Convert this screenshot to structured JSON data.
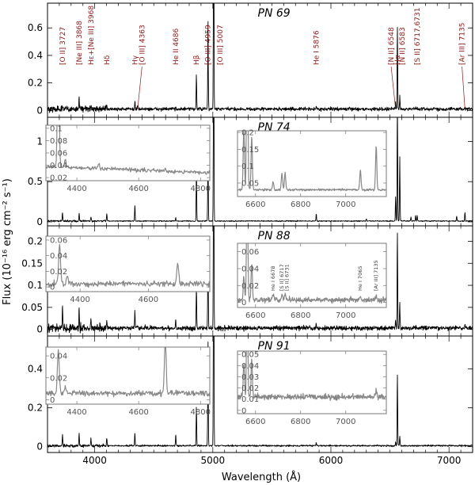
{
  "chart_data": {
    "type": "line",
    "xlabel": "Wavelength (Å)",
    "ylabel": "Flux (10⁻¹⁶ erg cm⁻² s⁻¹)",
    "xlim": [
      3600,
      7200
    ],
    "xticks": [
      4000,
      5000,
      6000,
      7000
    ],
    "xtick_labels": [
      "4000",
      "5000",
      "6000",
      "7000"
    ],
    "panels": [
      {
        "name": "PN 69",
        "ylim": [
          -0.05,
          0.78
        ],
        "yticks": [
          0,
          0.2,
          0.4,
          0.6
        ],
        "ytick_labels": [
          "0",
          "0.2",
          "0.4",
          "0.6"
        ],
        "continuum": 0.01,
        "noise": 0.012,
        "lines": [
          {
            "w": 3727,
            "h": 0.04
          },
          {
            "w": 3868,
            "h": 0.09
          },
          {
            "w": 3968,
            "h": 0.04
          },
          {
            "w": 4102,
            "h": 0.03
          },
          {
            "w": 4340,
            "h": 0.06
          },
          {
            "w": 4363,
            "h": 0.03
          },
          {
            "w": 4686,
            "h": 0.02
          },
          {
            "w": 4861,
            "h": 0.25
          },
          {
            "w": 4959,
            "h": 0.66
          },
          {
            "w": 5007,
            "h": 1.8
          },
          {
            "w": 5876,
            "h": 0.02
          },
          {
            "w": 6548,
            "h": 0.05
          },
          {
            "w": 6563,
            "h": 0.6
          },
          {
            "w": 6583,
            "h": 0.1
          },
          {
            "w": 6717,
            "h": 0.01
          },
          {
            "w": 6731,
            "h": 0.01
          },
          {
            "w": 7135,
            "h": 0.02
          }
        ],
        "annotations": [
          {
            "text": "[O II] 3727",
            "w": 3727
          },
          {
            "text": "[Ne III] 3868",
            "w": 3868
          },
          {
            "text": "Hε+[Ne III] 3968",
            "w": 3968
          },
          {
            "text": "Hδ",
            "w": 4102
          },
          {
            "text": "Hγ",
            "w": 4340
          },
          {
            "text": "[O III] 4363",
            "w": 4400
          },
          {
            "text": "He II 4686",
            "w": 4686
          },
          {
            "text": "Hβ",
            "w": 4861
          },
          {
            "text": "[O III] 4959",
            "w": 4959
          },
          {
            "text": "[O III] 5007",
            "w": 5060
          },
          {
            "text": "He I 5876",
            "w": 5876
          },
          {
            "text": "[N II] 6548",
            "w": 6510
          },
          {
            "text": "Hα",
            "w": 6563
          },
          {
            "text": "[N II] 6583",
            "w": 6605
          },
          {
            "text": "[S II] 6717,6731",
            "w": 6730
          },
          {
            "text": "[Ar III] 7135",
            "w": 7110
          }
        ]
      },
      {
        "name": "PN 74",
        "ylim": [
          -0.05,
          1.3
        ],
        "yticks": [
          0,
          0.5,
          1
        ],
        "ytick_labels": [
          "0",
          "0.5",
          "1"
        ],
        "continuum": 0.01,
        "noise": 0.006,
        "lines": [
          {
            "w": 3727,
            "h": 0.11
          },
          {
            "w": 3868,
            "h": 0.1
          },
          {
            "w": 3968,
            "h": 0.05
          },
          {
            "w": 4102,
            "h": 0.09
          },
          {
            "w": 4340,
            "h": 0.2
          },
          {
            "w": 4686,
            "h": 0.05
          },
          {
            "w": 4861,
            "h": 0.65
          },
          {
            "w": 4959,
            "h": 1.05
          },
          {
            "w": 5007,
            "h": 3.0
          },
          {
            "w": 5876,
            "h": 0.09
          },
          {
            "w": 6300,
            "h": 0.03
          },
          {
            "w": 6548,
            "h": 0.3
          },
          {
            "w": 6563,
            "h": 1.5
          },
          {
            "w": 6583,
            "h": 0.8
          },
          {
            "w": 6678,
            "h": 0.05
          },
          {
            "w": 6717,
            "h": 0.07
          },
          {
            "w": 6731,
            "h": 0.07
          },
          {
            "w": 7065,
            "h": 0.06
          },
          {
            "w": 7135,
            "h": 0.11
          }
        ],
        "insets": [
          {
            "xlim": [
              4300,
              4830
            ],
            "ylim": [
              0.015,
              0.105
            ],
            "xticks": [
              4400,
              4600,
              4800
            ],
            "xtick_labels": [
              "4400",
              "4600",
              "4800"
            ],
            "yticks": [
              0.02,
              0.04,
              0.06,
              0.08,
              0.1
            ],
            "ytick_labels": [
              "0.02",
              "0.04",
              "0.06",
              "0.08",
              "0.1"
            ],
            "continuum": 0.038,
            "noise": 0.003,
            "slope": -0.01,
            "lines": [
              {
                "w": 4340,
                "h": 0.2
              },
              {
                "w": 4363,
                "h": 0.012
              },
              {
                "w": 4471,
                "h": 0.008
              },
              {
                "w": 4686,
                "h": 0.003
              }
            ],
            "annotations": []
          },
          {
            "xlim": [
              6520,
              7180
            ],
            "ylim": [
              0.01,
              0.205
            ],
            "xticks": [
              6600,
              6800,
              7000
            ],
            "xtick_labels": [
              "6600",
              "6800",
              "7000"
            ],
            "yticks": [
              0.05,
              0.1,
              0.15,
              0.2
            ],
            "ytick_labels": [
              "0.05",
              "0.1",
              "0.15",
              "0.2"
            ],
            "continuum": 0.03,
            "noise": 0.003,
            "slope": 0,
            "lines": [
              {
                "w": 6548,
                "h": 0.18
              },
              {
                "w": 6563,
                "h": 0.6
              },
              {
                "w": 6583,
                "h": 0.16
              },
              {
                "w": 6678,
                "h": 0.025
              },
              {
                "w": 6717,
                "h": 0.05
              },
              {
                "w": 6731,
                "h": 0.05
              },
              {
                "w": 7065,
                "h": 0.06
              },
              {
                "w": 7135,
                "h": 0.13
              }
            ],
            "annotations": []
          }
        ]
      },
      {
        "name": "PN 88",
        "ylim": [
          -0.015,
          0.235
        ],
        "yticks": [
          0,
          0.05,
          0.1,
          0.15,
          0.2
        ],
        "ytick_labels": [
          "0",
          "0.05",
          "0.1",
          "0.15",
          "0.2"
        ],
        "continuum": 0.003,
        "noise": 0.005,
        "lines": [
          {
            "w": 3727,
            "h": 0.05
          },
          {
            "w": 3868,
            "h": 0.04
          },
          {
            "w": 3968,
            "h": 0.02
          },
          {
            "w": 4102,
            "h": 0.015
          },
          {
            "w": 4340,
            "h": 0.04
          },
          {
            "w": 4686,
            "h": 0.02
          },
          {
            "w": 4861,
            "h": 0.09
          },
          {
            "w": 4959,
            "h": 0.22
          },
          {
            "w": 5007,
            "h": 0.6
          },
          {
            "w": 5876,
            "h": 0.01
          },
          {
            "w": 6548,
            "h": 0.02
          },
          {
            "w": 6563,
            "h": 0.22
          },
          {
            "w": 6583,
            "h": 0.06
          },
          {
            "w": 6717,
            "h": 0.005
          },
          {
            "w": 7135,
            "h": 0.005
          }
        ],
        "insets": [
          {
            "xlim": [
              4300,
              4780
            ],
            "ylim": [
              -0.006,
              0.065
            ],
            "xticks": [
              4400,
              4600
            ],
            "xtick_labels": [
              "4400",
              "4600"
            ],
            "yticks": [
              0,
              0.02,
              0.04,
              0.06
            ],
            "ytick_labels": [
              "0",
              "0.02",
              "0.04",
              "0.06"
            ],
            "continuum": 0.004,
            "noise": 0.0035,
            "slope": 0,
            "lines": [
              {
                "w": 4340,
                "h": 0.05
              },
              {
                "w": 4363,
                "h": 0.01
              },
              {
                "w": 4686,
                "h": 0.028
              }
            ],
            "annotations": []
          },
          {
            "xlim": [
              6520,
              7180
            ],
            "ylim": [
              -0.006,
              0.07
            ],
            "xticks": [
              6600,
              6800,
              7000
            ],
            "xtick_labels": [
              "6600",
              "6800",
              "7000"
            ],
            "yticks": [
              0,
              0.02,
              0.04,
              0.06
            ],
            "ytick_labels": [
              "0",
              "0.02",
              "0.04",
              "0.06"
            ],
            "continuum": 0.003,
            "noise": 0.003,
            "slope": 0,
            "lines": [
              {
                "w": 6548,
                "h": 0.028
              },
              {
                "w": 6563,
                "h": 0.15
              },
              {
                "w": 6583,
                "h": 0.045
              },
              {
                "w": 6678,
                "h": 0.008
              },
              {
                "w": 6717,
                "h": 0.007
              },
              {
                "w": 6731,
                "h": 0.007
              },
              {
                "w": 7065,
                "h": 0.005
              },
              {
                "w": 7135,
                "h": 0.006
              }
            ],
            "annotations": [
              {
                "text": "He I 6678",
                "w": 6678
              },
              {
                "text": "[S II] 6717",
                "w": 6717
              },
              {
                "text": "[S II] 6731",
                "w": 6740
              },
              {
                "text": "He I 7065",
                "w": 7065
              },
              {
                "text": "[Ar III] 7135",
                "w": 7135
              }
            ]
          }
        ]
      },
      {
        "name": "PN 91",
        "ylim": [
          -0.03,
          0.57
        ],
        "yticks": [
          0,
          0.2,
          0.4
        ],
        "ytick_labels": [
          "0",
          "0.2",
          "0.4"
        ],
        "continuum": 0.005,
        "noise": 0.004,
        "lines": [
          {
            "w": 3727,
            "h": 0.06
          },
          {
            "w": 3868,
            "h": 0.07
          },
          {
            "w": 3968,
            "h": 0.04
          },
          {
            "w": 4102,
            "h": 0.04
          },
          {
            "w": 4340,
            "h": 0.07
          },
          {
            "w": 4686,
            "h": 0.06
          },
          {
            "w": 4861,
            "h": 0.2
          },
          {
            "w": 4959,
            "h": 0.55
          },
          {
            "w": 5007,
            "h": 1.6
          },
          {
            "w": 5876,
            "h": 0.015
          },
          {
            "w": 6548,
            "h": 0.02
          },
          {
            "w": 6563,
            "h": 0.37
          },
          {
            "w": 6583,
            "h": 0.05
          }
        ],
        "insets": [
          {
            "xlim": [
              4300,
              4830
            ],
            "ylim": [
              -0.004,
              0.048
            ],
            "xticks": [
              4400,
              4600,
              4800
            ],
            "xtick_labels": [
              "4400",
              "4600",
              "4800"
            ],
            "yticks": [
              0,
              0.02,
              0.04
            ],
            "ytick_labels": [
              "0",
              "0.02",
              "0.04"
            ],
            "continuum": 0.006,
            "noise": 0.0025,
            "slope": 0,
            "lines": [
              {
                "w": 4340,
                "h": 0.04
              },
              {
                "w": 4363,
                "h": 0.006
              },
              {
                "w": 4686,
                "h": 0.05
              }
            ],
            "annotations": []
          },
          {
            "xlim": [
              6520,
              7180
            ],
            "ylim": [
              -0.003,
              0.053
            ],
            "xticks": [
              6600,
              6800,
              7000
            ],
            "xtick_labels": [
              "6600",
              "6800",
              "7000"
            ],
            "yticks": [
              0,
              0.01,
              0.02,
              0.03,
              0.04,
              0.05
            ],
            "ytick_labels": [
              "0",
              "0.01",
              "0.02",
              "0.03",
              "0.04",
              "0.05"
            ],
            "continuum": 0.012,
            "noise": 0.0025,
            "slope": 0,
            "lines": [
              {
                "w": 6548,
                "h": 0.03
              },
              {
                "w": 6563,
                "h": 0.1
              },
              {
                "w": 6583,
                "h": 0.035
              },
              {
                "w": 7135,
                "h": 0.006
              }
            ],
            "annotations": []
          }
        ]
      }
    ]
  }
}
